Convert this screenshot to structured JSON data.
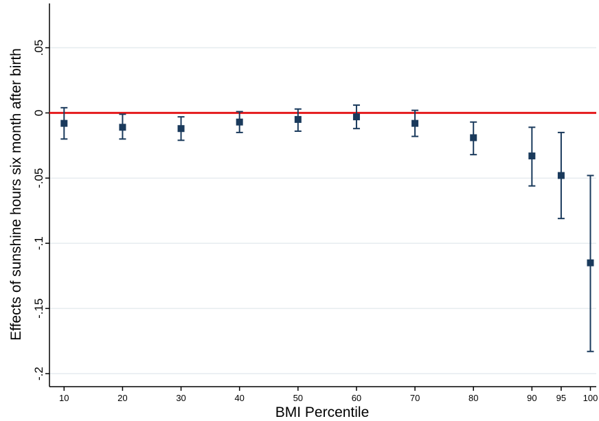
{
  "chart_data": {
    "type": "scatter",
    "xlabel": "BMI Percentile",
    "ylabel": "Effects of sunshine hours six month after birth",
    "xlim": [
      7.5,
      101
    ],
    "ylim": [
      -0.21,
      0.084
    ],
    "x_ticks": [
      {
        "value": 10,
        "label": "10"
      },
      {
        "value": 20,
        "label": "20"
      },
      {
        "value": 30,
        "label": "30"
      },
      {
        "value": 40,
        "label": "40"
      },
      {
        "value": 50,
        "label": "50"
      },
      {
        "value": 60,
        "label": "60"
      },
      {
        "value": 70,
        "label": "70"
      },
      {
        "value": 80,
        "label": "80"
      },
      {
        "value": 90,
        "label": "90"
      },
      {
        "value": 95,
        "label": "95"
      },
      {
        "value": 100,
        "label": "100"
      }
    ],
    "y_ticks": [
      {
        "value": 0.05,
        "label": ".05"
      },
      {
        "value": 0,
        "label": "0"
      },
      {
        "value": -0.05,
        "label": "-.05"
      },
      {
        "value": -0.1,
        "label": "-.1"
      },
      {
        "value": -0.15,
        "label": "-.15"
      },
      {
        "value": -0.2,
        "label": "-.2"
      }
    ],
    "grid": true,
    "reference_line": {
      "y": 0,
      "color": "#e41a1c"
    },
    "marker_color": "#1a3a5c",
    "points": [
      {
        "x": 10,
        "y": -0.008,
        "lo": -0.02,
        "hi": 0.004
      },
      {
        "x": 20,
        "y": -0.011,
        "lo": -0.02,
        "hi": -0.001
      },
      {
        "x": 30,
        "y": -0.012,
        "lo": -0.021,
        "hi": -0.003
      },
      {
        "x": 40,
        "y": -0.007,
        "lo": -0.015,
        "hi": 0.001
      },
      {
        "x": 50,
        "y": -0.005,
        "lo": -0.014,
        "hi": 0.003
      },
      {
        "x": 60,
        "y": -0.003,
        "lo": -0.012,
        "hi": 0.006
      },
      {
        "x": 70,
        "y": -0.008,
        "lo": -0.018,
        "hi": 0.002
      },
      {
        "x": 80,
        "y": -0.019,
        "lo": -0.032,
        "hi": -0.007
      },
      {
        "x": 90,
        "y": -0.033,
        "lo": -0.056,
        "hi": -0.011
      },
      {
        "x": 95,
        "y": -0.048,
        "lo": -0.081,
        "hi": -0.015
      },
      {
        "x": 100,
        "y": -0.115,
        "lo": -0.183,
        "hi": -0.048
      }
    ]
  }
}
